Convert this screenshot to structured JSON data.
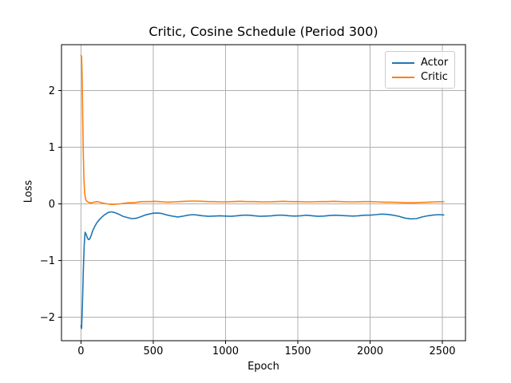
{
  "chart_data": {
    "type": "line",
    "title": "Critic, Cosine Schedule (Period 300)",
    "xlabel": "Epoch",
    "ylabel": "Loss",
    "xlim": [
      -135,
      2660
    ],
    "ylim": [
      -2.415,
      2.81
    ],
    "x_tick_values": [
      0,
      500,
      1000,
      1500,
      2000,
      2500
    ],
    "x_tick_labels": [
      "0",
      "500",
      "1000",
      "1500",
      "2000",
      "2500"
    ],
    "y_tick_values": [
      -2,
      -1,
      0,
      1,
      2
    ],
    "y_tick_labels": [
      "−2",
      "−1",
      "0",
      "1",
      "2"
    ],
    "grid": true,
    "legend_position": "upper right",
    "colors": {
      "grid": "#b0b0b0",
      "axes": "#000000",
      "background": "#ffffff"
    },
    "series": [
      {
        "name": "Actor",
        "color": "#1f77b4",
        "x": [
          0,
          4,
          10,
          16,
          22,
          28,
          36,
          44,
          52,
          60,
          70,
          80,
          95,
          110,
          130,
          150,
          170,
          190,
          210,
          230,
          260,
          290,
          320,
          350,
          380,
          410,
          440,
          470,
          500,
          530,
          560,
          600,
          640,
          670,
          700,
          740,
          770,
          800,
          840,
          880,
          920,
          960,
          1000,
          1040,
          1080,
          1120,
          1160,
          1200,
          1240,
          1280,
          1320,
          1360,
          1400,
          1440,
          1480,
          1520,
          1560,
          1600,
          1640,
          1680,
          1720,
          1760,
          1800,
          1840,
          1880,
          1920,
          1960,
          2000,
          2040,
          2080,
          2120,
          2160,
          2200,
          2240,
          2280,
          2320,
          2360,
          2400,
          2440,
          2480,
          2510
        ],
        "y": [
          -2.15,
          -2.2,
          -1.75,
          -1.2,
          -0.75,
          -0.5,
          -0.54,
          -0.6,
          -0.63,
          -0.62,
          -0.56,
          -0.48,
          -0.4,
          -0.33,
          -0.27,
          -0.22,
          -0.18,
          -0.15,
          -0.14,
          -0.15,
          -0.18,
          -0.22,
          -0.24,
          -0.26,
          -0.255,
          -0.23,
          -0.2,
          -0.18,
          -0.165,
          -0.16,
          -0.17,
          -0.2,
          -0.22,
          -0.23,
          -0.22,
          -0.2,
          -0.19,
          -0.195,
          -0.21,
          -0.22,
          -0.215,
          -0.21,
          -0.215,
          -0.22,
          -0.21,
          -0.2,
          -0.2,
          -0.21,
          -0.22,
          -0.215,
          -0.21,
          -0.2,
          -0.2,
          -0.21,
          -0.215,
          -0.21,
          -0.2,
          -0.21,
          -0.22,
          -0.215,
          -0.205,
          -0.2,
          -0.205,
          -0.21,
          -0.215,
          -0.21,
          -0.2,
          -0.2,
          -0.19,
          -0.18,
          -0.185,
          -0.2,
          -0.22,
          -0.25,
          -0.265,
          -0.26,
          -0.23,
          -0.21,
          -0.195,
          -0.19,
          -0.195
        ]
      },
      {
        "name": "Critic",
        "color": "#ff7f0e",
        "x": [
          0,
          4,
          8,
          12,
          16,
          20,
          25,
          30,
          36,
          44,
          52,
          60,
          75,
          90,
          110,
          130,
          150,
          180,
          210,
          240,
          270,
          300,
          330,
          360,
          390,
          420,
          450,
          480,
          510,
          540,
          570,
          600,
          640,
          680,
          720,
          760,
          800,
          840,
          880,
          920,
          960,
          1000,
          1050,
          1100,
          1150,
          1200,
          1250,
          1300,
          1350,
          1400,
          1450,
          1500,
          1550,
          1600,
          1650,
          1700,
          1750,
          1800,
          1850,
          1900,
          1950,
          2000,
          2050,
          2100,
          2150,
          2200,
          2250,
          2300,
          2350,
          2400,
          2450,
          2510
        ],
        "y": [
          2.62,
          2.6,
          2.2,
          1.55,
          0.9,
          0.45,
          0.2,
          0.1,
          0.06,
          0.04,
          0.03,
          0.02,
          0.02,
          0.03,
          0.04,
          0.03,
          0.015,
          0.0,
          -0.01,
          -0.005,
          0.0,
          0.01,
          0.02,
          0.02,
          0.03,
          0.04,
          0.04,
          0.04,
          0.045,
          0.04,
          0.035,
          0.03,
          0.035,
          0.04,
          0.045,
          0.05,
          0.05,
          0.045,
          0.04,
          0.04,
          0.035,
          0.035,
          0.04,
          0.045,
          0.04,
          0.04,
          0.035,
          0.035,
          0.04,
          0.045,
          0.04,
          0.04,
          0.035,
          0.035,
          0.04,
          0.04,
          0.045,
          0.04,
          0.035,
          0.035,
          0.04,
          0.04,
          0.035,
          0.03,
          0.03,
          0.025,
          0.02,
          0.02,
          0.025,
          0.03,
          0.035,
          0.04
        ]
      }
    ]
  }
}
